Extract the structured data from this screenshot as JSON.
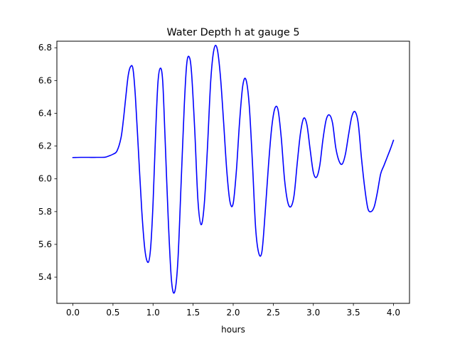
{
  "chart_data": {
    "type": "line",
    "title": "Water Depth h at gauge 5",
    "xlabel": "hours",
    "ylabel": "",
    "xlim": [
      -0.2,
      4.2
    ],
    "ylim": [
      5.24,
      6.84
    ],
    "xticks": [
      0.0,
      0.5,
      1.0,
      1.5,
      2.0,
      2.5,
      3.0,
      3.5,
      4.0
    ],
    "xtick_labels": [
      "0.0",
      "0.5",
      "1.0",
      "1.5",
      "2.0",
      "2.5",
      "3.0",
      "3.5",
      "4.0"
    ],
    "yticks": [
      5.4,
      5.6,
      5.8,
      6.0,
      6.2,
      6.4,
      6.6,
      6.8
    ],
    "ytick_labels": [
      "5.4",
      "5.6",
      "5.8",
      "6.0",
      "6.2",
      "6.4",
      "6.6",
      "6.8"
    ],
    "grid": false,
    "series": [
      {
        "color": "#0000ff",
        "x": [
          0.0,
          0.1,
          0.2,
          0.3,
          0.4,
          0.45,
          0.5,
          0.55,
          0.6,
          0.63,
          0.66,
          0.69,
          0.72,
          0.75,
          0.78,
          0.82,
          0.86,
          0.9,
          0.94,
          0.97,
          1.0,
          1.03,
          1.06,
          1.09,
          1.12,
          1.15,
          1.19,
          1.23,
          1.27,
          1.31,
          1.35,
          1.39,
          1.42,
          1.45,
          1.48,
          1.52,
          1.56,
          1.6,
          1.64,
          1.68,
          1.72,
          1.76,
          1.8,
          1.84,
          1.88,
          1.92,
          1.96,
          2.0,
          2.04,
          2.08,
          2.12,
          2.16,
          2.2,
          2.24,
          2.28,
          2.32,
          2.36,
          2.4,
          2.44,
          2.48,
          2.52,
          2.56,
          2.6,
          2.64,
          2.68,
          2.72,
          2.76,
          2.8,
          2.84,
          2.88,
          2.92,
          2.96,
          3.0,
          3.04,
          3.08,
          3.12,
          3.16,
          3.2,
          3.24,
          3.28,
          3.32,
          3.36,
          3.4,
          3.44,
          3.48,
          3.52,
          3.56,
          3.6,
          3.64,
          3.68,
          3.72,
          3.76,
          3.8,
          3.84,
          3.88,
          3.92,
          3.96,
          4.0
        ],
        "values": [
          6.13,
          6.131,
          6.131,
          6.131,
          6.132,
          6.14,
          6.15,
          6.17,
          6.25,
          6.36,
          6.5,
          6.63,
          6.685,
          6.67,
          6.5,
          6.15,
          5.8,
          5.56,
          5.49,
          5.58,
          5.85,
          6.25,
          6.58,
          6.675,
          6.6,
          6.25,
          5.75,
          5.38,
          5.31,
          5.5,
          5.97,
          6.45,
          6.7,
          6.745,
          6.65,
          6.3,
          5.87,
          5.72,
          5.85,
          6.2,
          6.6,
          6.79,
          6.795,
          6.63,
          6.35,
          6.05,
          5.86,
          5.85,
          6.05,
          6.35,
          6.57,
          6.605,
          6.45,
          6.1,
          5.7,
          5.545,
          5.56,
          5.8,
          6.08,
          6.31,
          6.43,
          6.42,
          6.25,
          6.0,
          5.86,
          5.83,
          5.9,
          6.1,
          6.28,
          6.37,
          6.33,
          6.18,
          6.04,
          6.01,
          6.08,
          6.24,
          6.36,
          6.39,
          6.34,
          6.19,
          6.11,
          6.09,
          6.15,
          6.27,
          6.38,
          6.41,
          6.34,
          6.13,
          5.95,
          5.82,
          5.8,
          5.83,
          5.92,
          6.03,
          6.08,
          6.13,
          6.18,
          6.235
        ]
      }
    ]
  }
}
